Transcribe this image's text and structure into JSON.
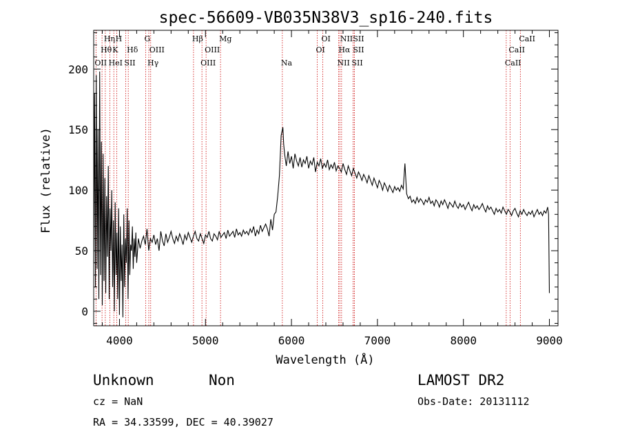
{
  "chart_data": {
    "type": "line",
    "title": "spec-56609-VB035N38V3_sp16-240.fits",
    "xlabel": "Wavelength (Å)",
    "ylabel": "Flux (relative)",
    "xlim": [
      3700,
      9100
    ],
    "ylim": [
      -12,
      232
    ],
    "xticks": [
      4000,
      5000,
      6000,
      7000,
      8000,
      9000
    ],
    "yticks": [
      0,
      50,
      100,
      150,
      200
    ],
    "grid": false,
    "series": [
      {
        "x": [
          3700,
          3710,
          3720,
          3730,
          3740,
          3750,
          3760,
          3770,
          3780,
          3790,
          3800,
          3810,
          3820,
          3830,
          3840,
          3850,
          3860,
          3870,
          3880,
          3890,
          3900,
          3910,
          3920,
          3930,
          3940,
          3950,
          3960,
          3970,
          3980,
          3990,
          4000,
          4010,
          4020,
          4030,
          4040,
          4050,
          4060,
          4070,
          4080,
          4090,
          4100,
          4110,
          4120,
          4130,
          4140,
          4150,
          4160,
          4170,
          4180,
          4190,
          4200,
          4220,
          4240,
          4260,
          4280,
          4300,
          4320,
          4340,
          4360,
          4380,
          4400,
          4420,
          4440,
          4460,
          4480,
          4500,
          4520,
          4540,
          4560,
          4580,
          4600,
          4620,
          4640,
          4660,
          4680,
          4700,
          4720,
          4740,
          4760,
          4780,
          4800,
          4820,
          4840,
          4860,
          4880,
          4900,
          4920,
          4940,
          4960,
          4980,
          5000,
          5020,
          5040,
          5060,
          5080,
          5100,
          5120,
          5140,
          5160,
          5180,
          5200,
          5220,
          5240,
          5260,
          5280,
          5300,
          5320,
          5340,
          5360,
          5380,
          5400,
          5420,
          5440,
          5460,
          5480,
          5500,
          5520,
          5540,
          5560,
          5580,
          5600,
          5620,
          5640,
          5660,
          5680,
          5700,
          5720,
          5740,
          5760,
          5780,
          5800,
          5820,
          5840,
          5860,
          5880,
          5900,
          5910,
          5920,
          5940,
          5960,
          5980,
          6000,
          6020,
          6040,
          6060,
          6080,
          6100,
          6120,
          6140,
          6160,
          6180,
          6200,
          6220,
          6240,
          6260,
          6280,
          6300,
          6320,
          6340,
          6360,
          6380,
          6400,
          6420,
          6440,
          6460,
          6480,
          6500,
          6520,
          6540,
          6560,
          6580,
          6600,
          6620,
          6640,
          6660,
          6680,
          6700,
          6720,
          6740,
          6760,
          6780,
          6800,
          6820,
          6840,
          6860,
          6880,
          6900,
          6920,
          6940,
          6960,
          6980,
          7000,
          7020,
          7040,
          7060,
          7080,
          7100,
          7120,
          7140,
          7160,
          7180,
          7200,
          7220,
          7240,
          7260,
          7280,
          7300,
          7320,
          7340,
          7360,
          7380,
          7400,
          7420,
          7440,
          7460,
          7480,
          7500,
          7520,
          7540,
          7560,
          7580,
          7600,
          7620,
          7640,
          7660,
          7680,
          7700,
          7720,
          7740,
          7760,
          7780,
          7800,
          7820,
          7840,
          7860,
          7880,
          7900,
          7920,
          7940,
          7960,
          7980,
          8000,
          8020,
          8040,
          8060,
          8080,
          8100,
          8120,
          8140,
          8160,
          8180,
          8200,
          8220,
          8240,
          8260,
          8280,
          8300,
          8320,
          8340,
          8360,
          8380,
          8400,
          8420,
          8440,
          8460,
          8480,
          8500,
          8520,
          8540,
          8560,
          8580,
          8600,
          8620,
          8640,
          8660,
          8680,
          8700,
          8720,
          8740,
          8760,
          8780,
          8800,
          8820,
          8840,
          8860,
          8880,
          8900,
          8920,
          8940,
          8960,
          8980,
          8990,
          9000
        ],
        "y": [
          40,
          180,
          20,
          195,
          35,
          150,
          10,
          198,
          30,
          140,
          5,
          130,
          25,
          110,
          15,
          95,
          45,
          120,
          10,
          85,
          50,
          100,
          20,
          75,
          0,
          90,
          30,
          65,
          10,
          85,
          -3,
          70,
          25,
          55,
          -5,
          80,
          20,
          60,
          40,
          85,
          10,
          75,
          30,
          55,
          50,
          70,
          35,
          60,
          45,
          65,
          40,
          60,
          52,
          58,
          62,
          55,
          68,
          50,
          60,
          57,
          63,
          55,
          60,
          50,
          66,
          58,
          54,
          64,
          57,
          61,
          66,
          60,
          56,
          62,
          58,
          64,
          60,
          55,
          63,
          59,
          65,
          61,
          57,
          62,
          66,
          60,
          58,
          64,
          60,
          56,
          63,
          61,
          66,
          60,
          58,
          64,
          62,
          59,
          66,
          61,
          63,
          65,
          60,
          67,
          62,
          64,
          66,
          61,
          68,
          63,
          65,
          62,
          67,
          64,
          66,
          63,
          68,
          65,
          70,
          62,
          67,
          64,
          71,
          66,
          69,
          72,
          68,
          62,
          76,
          67,
          80,
          82,
          95,
          112,
          145,
          152,
          138,
          130,
          120,
          132,
          122,
          128,
          118,
          130,
          124,
          120,
          127,
          119,
          125,
          122,
          128,
          118,
          124,
          121,
          127,
          115,
          123,
          120,
          126,
          118,
          122,
          119,
          125,
          117,
          121,
          118,
          123,
          116,
          120,
          118,
          115,
          122,
          117,
          113,
          120,
          116,
          112,
          118,
          114,
          110,
          115,
          112,
          108,
          113,
          110,
          106,
          112,
          108,
          104,
          110,
          106,
          102,
          108,
          105,
          100,
          106,
          103,
          99,
          104,
          101,
          98,
          103,
          100,
          102,
          99,
          104,
          101,
          122,
          97,
          93,
          95,
          90,
          92,
          89,
          94,
          90,
          93,
          91,
          88,
          92,
          90,
          94,
          89,
          91,
          87,
          92,
          90,
          86,
          91,
          88,
          92,
          89,
          85,
          90,
          88,
          86,
          91,
          87,
          85,
          89,
          86,
          88,
          84,
          87,
          90,
          86,
          83,
          88,
          85,
          87,
          84,
          86,
          89,
          85,
          82,
          87,
          84,
          86,
          83,
          80,
          85,
          82,
          84,
          81,
          86,
          83,
          80,
          84,
          82,
          79,
          83,
          85,
          81,
          78,
          83,
          80,
          84,
          81,
          79,
          82,
          80,
          83,
          78,
          81,
          84,
          80,
          82,
          79,
          83,
          81,
          86,
          80,
          15
        ]
      }
    ],
    "spectral_lines": [
      {
        "label": "OII",
        "x": 3727,
        "row": 3
      },
      {
        "label": "Hθ",
        "x": 3797,
        "row": 2
      },
      {
        "label": "Hη",
        "x": 3835,
        "row": 1
      },
      {
        "label": "HeI",
        "x": 3889,
        "row": 3
      },
      {
        "label": "K",
        "x": 3934,
        "row": 2
      },
      {
        "label": "H",
        "x": 3969,
        "row": 1
      },
      {
        "label": "SII",
        "x": 4072,
        "row": 3
      },
      {
        "label": "Hδ",
        "x": 4102,
        "row": 2
      },
      {
        "label": "G",
        "x": 4305,
        "row": 1
      },
      {
        "label": "Hγ",
        "x": 4341,
        "row": 3
      },
      {
        "label": "OIII",
        "x": 4363,
        "row": 2
      },
      {
        "label": "Hβ",
        "x": 4861,
        "row": 1
      },
      {
        "label": "OIII",
        "x": 4959,
        "row": 3
      },
      {
        "label": "OIII",
        "x": 5007,
        "row": 2
      },
      {
        "label": "Mg",
        "x": 5175,
        "row": 1
      },
      {
        "label": "Na",
        "x": 5894,
        "row": 3
      },
      {
        "label": "OI",
        "x": 6300,
        "row": 2
      },
      {
        "label": "OI",
        "x": 6364,
        "row": 1
      },
      {
        "label": "NII",
        "x": 6548,
        "row": 3
      },
      {
        "label": "Hα",
        "x": 6563,
        "row": 2
      },
      {
        "label": "NII",
        "x": 6583,
        "row": 1
      },
      {
        "label": "SII",
        "x": 6716,
        "row": 3
      },
      {
        "label": "SII",
        "x": 6731,
        "row": 2
      },
      {
        "label": "SII",
        "x": 6731,
        "row": 1
      },
      {
        "label": "CaII",
        "x": 8498,
        "row": 3
      },
      {
        "label": "CaII",
        "x": 8542,
        "row": 2
      },
      {
        "label": "CaII",
        "x": 8662,
        "row": 1
      }
    ]
  },
  "info": {
    "class_label": "Unknown",
    "subclass_label": "Non",
    "survey": "LAMOST DR2",
    "redshift": "cz = NaN",
    "obs_date": "Obs-Date: 20131112",
    "coordinates": "RA =  34.33599, DEC =  40.39027"
  },
  "colors": {
    "spectrum": "#000000",
    "line_markers": "#cc0000"
  }
}
